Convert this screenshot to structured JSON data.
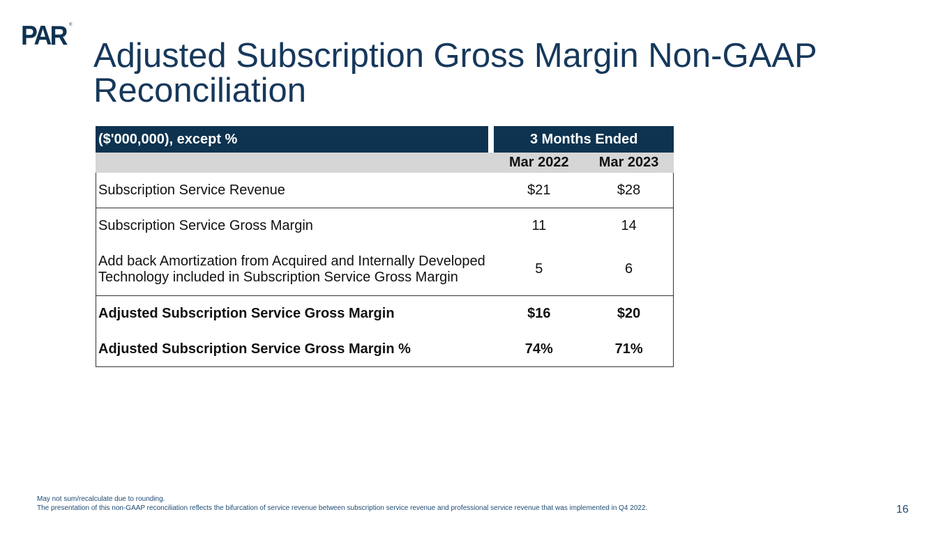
{
  "logo": {
    "text": "PAR",
    "registered_mark": "®"
  },
  "title": "Adjusted Subscription Gross Margin Non-GAAP Reconciliation",
  "table": {
    "unit_header": "($'000,000), except %",
    "period_header": "3 Months Ended",
    "columns": [
      "Mar 2022",
      "Mar 2023"
    ],
    "rows": [
      {
        "label": "Subscription Service Revenue",
        "values": [
          "$21",
          "$28"
        ],
        "bold": false
      },
      {
        "label": "Subscription Service Gross Margin",
        "values": [
          "11",
          "14"
        ],
        "bold": false
      },
      {
        "label": "Add back Amortization from Acquired and Internally Developed Technology included in Subscription Service Gross Margin",
        "values": [
          "5",
          "6"
        ],
        "bold": false
      },
      {
        "label": "Adjusted Subscription Service Gross Margin",
        "values": [
          "$16",
          "$20"
        ],
        "bold": true
      },
      {
        "label": "Adjusted Subscription Service Gross Margin %",
        "values": [
          "74%",
          "71%"
        ],
        "bold": true
      }
    ]
  },
  "footnotes": [
    "May not sum/recalculate due to rounding.",
    "The presentation of this non-GAAP reconciliation reflects the bifurcation of service revenue between subscription service revenue and professional service revenue that was implemented in Q4 2022."
  ],
  "page_number": "16",
  "colors": {
    "brand_navy": "#0d3350",
    "title_blue": "#16385b",
    "subheader_gray": "#d6d6d6",
    "footnote_blue": "#1d4a72"
  }
}
